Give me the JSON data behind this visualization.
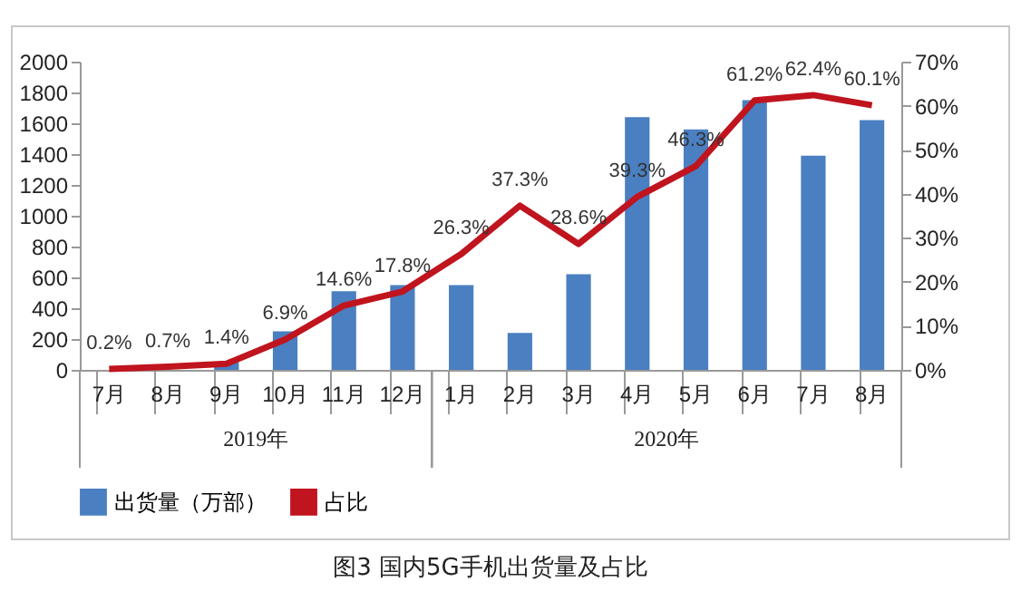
{
  "chart_data": {
    "type": "bar",
    "title": "图3   国内5G手机出货量及占比",
    "categories": [
      "7月",
      "8月",
      "9月",
      "10月",
      "11月",
      "12月",
      "1月",
      "2月",
      "3月",
      "4月",
      "5月",
      "6月",
      "7月",
      "8月"
    ],
    "series": [
      {
        "name": "出货量（万部）",
        "color": "#4a7fc1",
        "values": [
          0,
          0,
          50,
          250,
          510,
          550,
          550,
          240,
          620,
          1640,
          1560,
          1750,
          1390,
          1620
        ]
      },
      {
        "name": "占比",
        "type": "line",
        "axis": "y2",
        "color": "#c0141e",
        "values": [
          0.2,
          0.7,
          1.4,
          6.9,
          14.6,
          17.8,
          26.3,
          37.3,
          28.6,
          39.3,
          46.3,
          61.2,
          62.4,
          60.1
        ],
        "value_labels": [
          "0.2%",
          "0.7%",
          "1.4%",
          "6.9%",
          "14.6%",
          "17.8%",
          "26.3%",
          "37.3%",
          "28.6%",
          "39.3%",
          "46.3%",
          "61.2%",
          "62.4%",
          "60.1%"
        ]
      }
    ],
    "ylim": [
      0,
      2000
    ],
    "yticks": [
      0,
      200,
      400,
      600,
      800,
      1000,
      1200,
      1400,
      1600,
      1800,
      2000
    ],
    "y2lim": [
      0,
      70
    ],
    "y2ticks": [
      {
        "value": 0,
        "label": "0%"
      },
      {
        "value": 10,
        "label": "10%"
      },
      {
        "value": 20,
        "label": "20%"
      },
      {
        "value": 30,
        "label": "30%"
      },
      {
        "value": 40,
        "label": "40%"
      },
      {
        "value": 50,
        "label": "50%"
      },
      {
        "value": 60,
        "label": "60%"
      },
      {
        "value": 70,
        "label": "70%"
      }
    ],
    "annotations": [
      "2019年",
      "2020年"
    ],
    "legend": "bottom",
    "marker": "none",
    "grid": false
  }
}
